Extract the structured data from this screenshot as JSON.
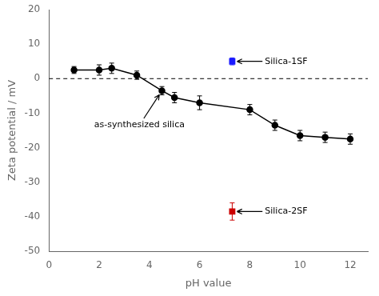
{
  "chart_data": {
    "type": "line",
    "xlabel": "pH value",
    "ylabel": "Zeta potential / mV",
    "xlim": [
      0,
      12.7
    ],
    "ylim": [
      -50,
      20
    ],
    "xticks": [
      0,
      2,
      4,
      6,
      8,
      10,
      12
    ],
    "yticks": [
      -50,
      -40,
      -30,
      -20,
      -10,
      0,
      10,
      20
    ],
    "grid": false,
    "series": [
      {
        "x": [
          1,
          2,
          2.5,
          3.5,
          4.5,
          5.0,
          6.0,
          8.0,
          9.0,
          10.0,
          11.0,
          12.0
        ],
        "values": [
          2.5,
          2.5,
          3.0,
          1.0,
          -3.5,
          -5.5,
          -7.0,
          -9.0,
          -13.5,
          -16.5,
          -17.0,
          -17.5
        ],
        "yerr": [
          1.0,
          1.5,
          1.5,
          1.2,
          1.2,
          1.5,
          2.0,
          1.5,
          1.5,
          1.5,
          1.5,
          1.5
        ],
        "color": "#000000",
        "marker": "circle",
        "line_style": "solid"
      },
      {
        "x": [
          7.3
        ],
        "values": [
          5.0
        ],
        "yerr": [
          1.0
        ],
        "color": "#1a1aff",
        "marker": "square",
        "line_style": "none"
      },
      {
        "x": [
          7.3
        ],
        "values": [
          -38.5
        ],
        "yerr": [
          2.5
        ],
        "color": "#cc0000",
        "marker": "square",
        "line_style": "none"
      }
    ],
    "hlines": [
      {
        "y": 0
      }
    ],
    "annotations": [
      {
        "text": "as-synthesized silica",
        "xy": [
          4.5,
          -3.5
        ],
        "xytext": [
          1.8,
          -13.5
        ]
      },
      {
        "text": "Silica-1SF",
        "xy": [
          7.3,
          5.0
        ],
        "xytext": [
          8.6,
          5.0
        ]
      },
      {
        "text": "Silica-2SF",
        "xy": [
          7.3,
          -38.5
        ],
        "xytext": [
          8.6,
          -38.5
        ]
      }
    ]
  }
}
